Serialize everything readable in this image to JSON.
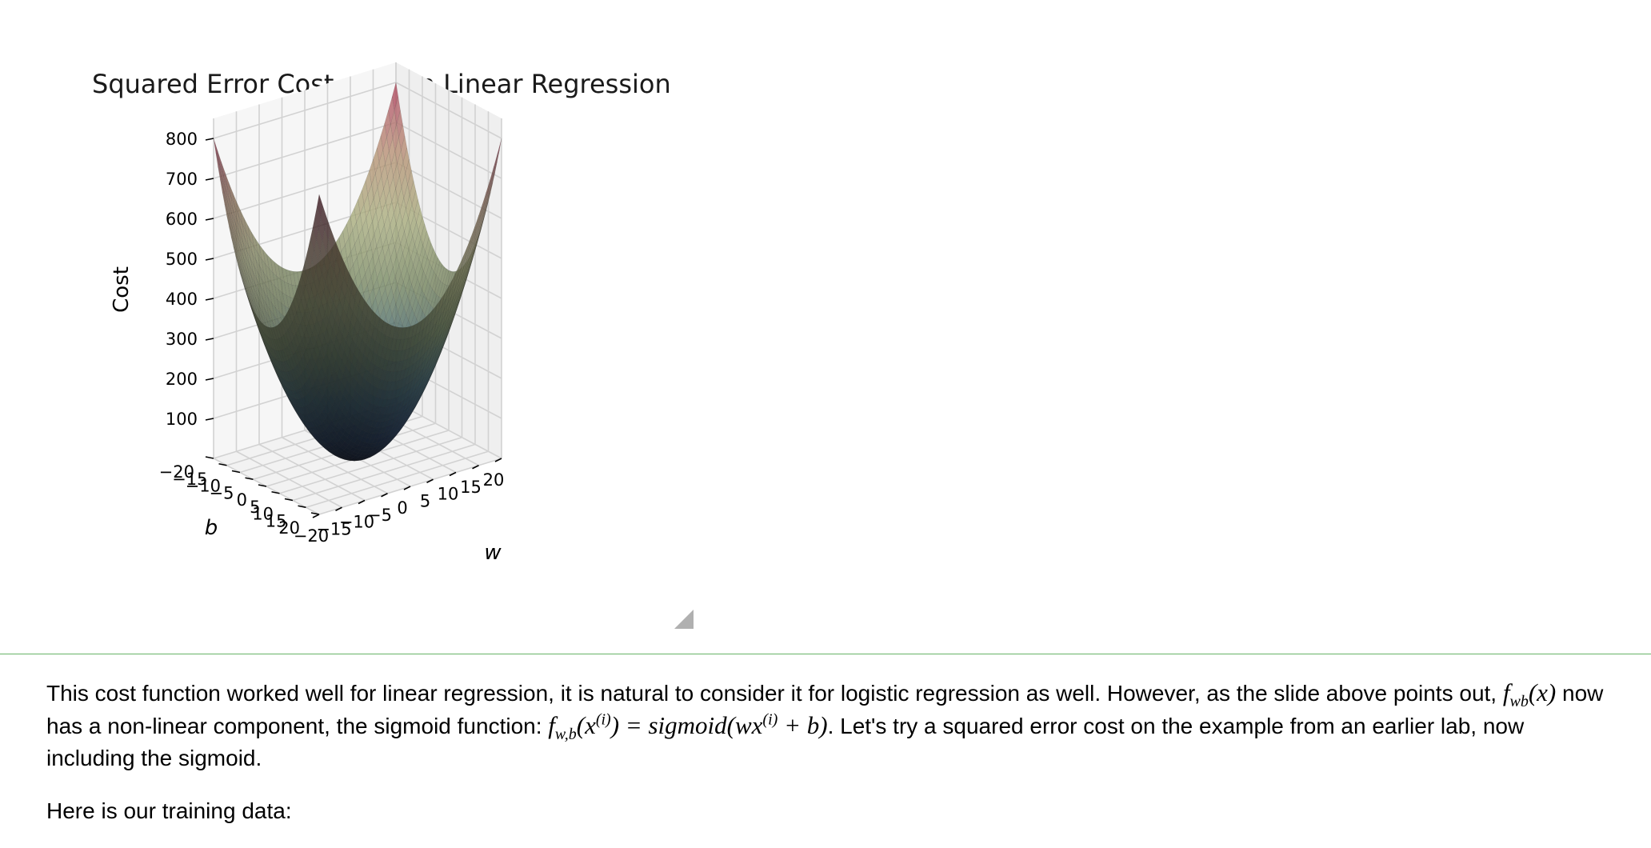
{
  "chart_data": {
    "type": "surface3d",
    "title": "Squared Error Cost used in Linear Regression",
    "xlabel": "w",
    "ylabel": "b",
    "zlabel": "Cost",
    "x_ticks": [
      -20,
      -15,
      -10,
      -5,
      0,
      5,
      10,
      15,
      20
    ],
    "y_ticks": [
      20,
      15,
      10,
      5,
      0,
      -5,
      -10,
      -15,
      -20
    ],
    "z_ticks": [
      100,
      200,
      300,
      400,
      500,
      600,
      700,
      800
    ],
    "x_tick_labels": [
      "−20",
      "−15",
      "−10",
      "−5",
      "0",
      "5",
      "10",
      "15",
      "20"
    ],
    "y_tick_labels": [
      "20",
      "15",
      "10",
      "5",
      "0",
      "−5",
      "−10",
      "−15",
      "−20"
    ],
    "z_tick_labels": [
      "100",
      "200",
      "300",
      "400",
      "500",
      "600",
      "700",
      "800"
    ],
    "xlim": [
      -20,
      20
    ],
    "ylim": [
      -20,
      20
    ],
    "zlim": [
      0,
      850
    ],
    "surface": {
      "function": "cost = 1.0*w^2 + 1.0*b^2",
      "w_range": [
        -20,
        20
      ],
      "b_range": [
        -20,
        20
      ],
      "corner_costs": {
        "w-20_b-20": 800,
        "w20_b-20": 800,
        "w-20_b20": 800,
        "w20_b20": 800
      },
      "minimum": {
        "w": 0,
        "b": 0,
        "cost": 0
      },
      "colormap": "pastel diverging (dark at minimum, rose at peaks)"
    },
    "grid": true
  },
  "colors": {
    "cell_divider": "#66b266",
    "surface_low": "#1c2d48",
    "surface_mid": "#b8c08c",
    "surface_high": "#c23a57"
  },
  "ui": {
    "resize_handle_icon": "resize-triangle-icon"
  },
  "markdown": {
    "p1_text_a": "This cost function worked well for linear regression, it is natural to consider it for logistic regression as well. However, as the slide above points out, ",
    "p1_math_a_base": "f",
    "p1_math_a_sub": "wb",
    "p1_math_a_arg": "(x)",
    "p1_text_b": " now has a non-linear component, the sigmoid function: ",
    "p1_math_b_base": "f",
    "p1_math_b_sub": "w,b",
    "p1_math_b_lpar": "(x",
    "p1_math_b_sup": "(i)",
    "p1_math_b_mid": ") = sigmoid(wx",
    "p1_math_b_sup2": "(i)",
    "p1_math_b_end": " + b)",
    "p1_text_c": ". Let's try a squared error cost on the example from an earlier lab, now including the sigmoid.",
    "p2_text": "Here is our training data:"
  }
}
